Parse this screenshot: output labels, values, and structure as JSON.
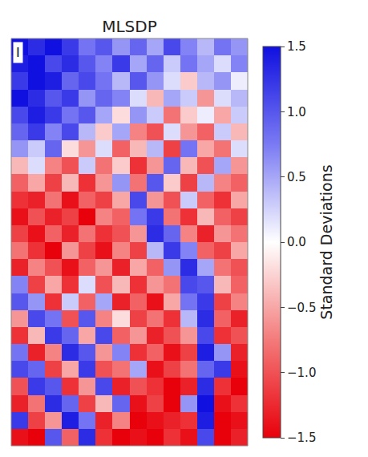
{
  "chart_data": {
    "type": "heatmap",
    "title": "MLSDP",
    "panel_label": "I",
    "colorbar_title": "Standard Deviations",
    "colorbar_range": [
      -1.5,
      1.5
    ],
    "colorbar_ticks": [
      {
        "value": -1.5,
        "label": "−1.5"
      },
      {
        "value": -1.0,
        "label": "−1.0"
      },
      {
        "value": -0.5,
        "label": "−0.5"
      },
      {
        "value": 0.0,
        "label": "0.0"
      },
      {
        "value": 0.5,
        "label": "0.5"
      },
      {
        "value": 1.0,
        "label": "1.0"
      },
      {
        "value": 1.5,
        "label": "1.5"
      }
    ],
    "tick_labels": false,
    "cells": [
      [
        1.5,
        1.3,
        1.5,
        1.2,
        0.8,
        1.0,
        0.6,
        0.9,
        0.5,
        1.1,
        0.7,
        0.4,
        0.8,
        0.6
      ],
      [
        1.4,
        1.5,
        1.1,
        1.3,
        1.0,
        0.7,
        1.2,
        0.5,
        0.9,
        0.3,
        0.8,
        0.5,
        0.2,
        0.7
      ],
      [
        1.2,
        1.5,
        1.4,
        0.9,
        1.1,
        0.8,
        0.4,
        1.0,
        0.6,
        0.2,
        -0.3,
        0.4,
        0.6,
        0.1
      ],
      [
        1.5,
        1.3,
        1.0,
        1.2,
        0.6,
        0.9,
        0.7,
        0.2,
        -0.4,
        0.5,
        0.3,
        -0.6,
        0.2,
        0.4
      ],
      [
        1.1,
        1.4,
        1.2,
        0.8,
        1.0,
        0.5,
        -0.2,
        0.6,
        0.3,
        -0.8,
        -0.3,
        0.1,
        -0.5,
        0.3
      ],
      [
        0.9,
        1.2,
        0.7,
        1.1,
        0.4,
        -0.3,
        0.5,
        -0.7,
        -1.0,
        0.2,
        -0.6,
        -0.9,
        0.3,
        -0.4
      ],
      [
        0.6,
        0.3,
        0.9,
        -0.2,
        -0.6,
        0.2,
        -0.9,
        -0.4,
        0.4,
        -1.1,
        0.8,
        -0.5,
        -0.8,
        0.2
      ],
      [
        -0.4,
        0.2,
        -0.7,
        -1.0,
        0.3,
        -0.8,
        -0.3,
        -1.2,
        -0.6,
        0.9,
        -0.4,
        -1.0,
        0.5,
        -0.6
      ],
      [
        -0.9,
        -0.5,
        -1.1,
        -0.4,
        -1.2,
        -0.6,
        0.6,
        -0.8,
        1.0,
        -0.3,
        -1.1,
        0.4,
        -0.7,
        -0.9
      ],
      [
        -1.2,
        -1.3,
        -0.8,
        -1.4,
        -0.9,
        -1.1,
        -0.5,
        1.1,
        -0.6,
        -1.0,
        0.3,
        -0.9,
        -1.2,
        -0.5
      ],
      [
        -1.4,
        -1.0,
        -1.3,
        -1.1,
        -1.5,
        -0.7,
        -0.9,
        0.8,
        1.2,
        -0.8,
        -1.2,
        -0.4,
        -0.9,
        -1.1
      ],
      [
        -1.1,
        -1.4,
        -0.9,
        -1.3,
        -0.8,
        -1.2,
        -1.0,
        -0.6,
        1.3,
        0.9,
        -0.7,
        -1.3,
        -0.6,
        -0.8
      ],
      [
        -0.8,
        -1.2,
        -1.5,
        -0.6,
        -1.1,
        -1.4,
        -0.7,
        -1.1,
        0.4,
        1.2,
        0.7,
        -0.9,
        -1.1,
        -0.5
      ],
      [
        -1.3,
        -0.7,
        -1.0,
        -1.4,
        -0.9,
        -0.6,
        -1.3,
        -0.5,
        -0.9,
        0.6,
        1.3,
        0.5,
        -0.8,
        -1.0
      ],
      [
        0.7,
        -1.1,
        -0.5,
        -1.2,
        0.2,
        -1.0,
        -0.4,
        -1.2,
        -0.6,
        -0.8,
        1.1,
        1.0,
        -0.4,
        -0.9
      ],
      [
        1.0,
        0.6,
        -1.2,
        0.3,
        -0.9,
        0.5,
        -1.3,
        -0.9,
        -1.4,
        -0.5,
        0.8,
        1.2,
        -1.1,
        -0.7
      ],
      [
        -0.6,
        1.1,
        0.8,
        -1.0,
        1.0,
        -0.7,
        -0.2,
        -1.1,
        -0.8,
        -1.2,
        0.4,
        1.3,
        -0.9,
        -1.3
      ],
      [
        -1.2,
        -0.4,
        1.2,
        0.9,
        -0.5,
        1.1,
        -0.9,
        -0.6,
        -1.3,
        -1.0,
        -0.6,
        1.1,
        -1.2,
        -1.0
      ],
      [
        0.8,
        -1.3,
        -0.7,
        1.3,
        1.0,
        -0.6,
        0.7,
        -1.2,
        -0.9,
        -1.4,
        -1.1,
        1.4,
        0.6,
        -1.3
      ],
      [
        1.1,
        0.9,
        -1.1,
        -0.5,
        1.2,
        -1.0,
        -0.8,
        0.5,
        -1.4,
        -1.1,
        -0.8,
        0.9,
        1.2,
        -1.4
      ],
      [
        -1.0,
        1.2,
        1.0,
        -1.2,
        -0.6,
        1.1,
        -1.3,
        -1.0,
        -1.2,
        -1.5,
        -1.3,
        1.3,
        -1.2,
        -1.5
      ],
      [
        -1.3,
        -0.8,
        1.3,
        0.9,
        -1.1,
        -0.4,
        0.9,
        -1.4,
        -1.1,
        -1.5,
        0.6,
        1.5,
        -1.4,
        -1.2
      ],
      [
        1.2,
        -1.1,
        -0.6,
        1.4,
        0.8,
        -1.3,
        -0.7,
        -1.5,
        -1.4,
        -1.3,
        -1.2,
        1.4,
        -1.5,
        -1.4
      ],
      [
        -1.4,
        -1.5,
        1.0,
        -0.9,
        1.3,
        -1.2,
        -1.5,
        -1.4,
        -1.5,
        -1.2,
        -1.4,
        1.1,
        -1.5,
        -1.3
      ]
    ]
  }
}
